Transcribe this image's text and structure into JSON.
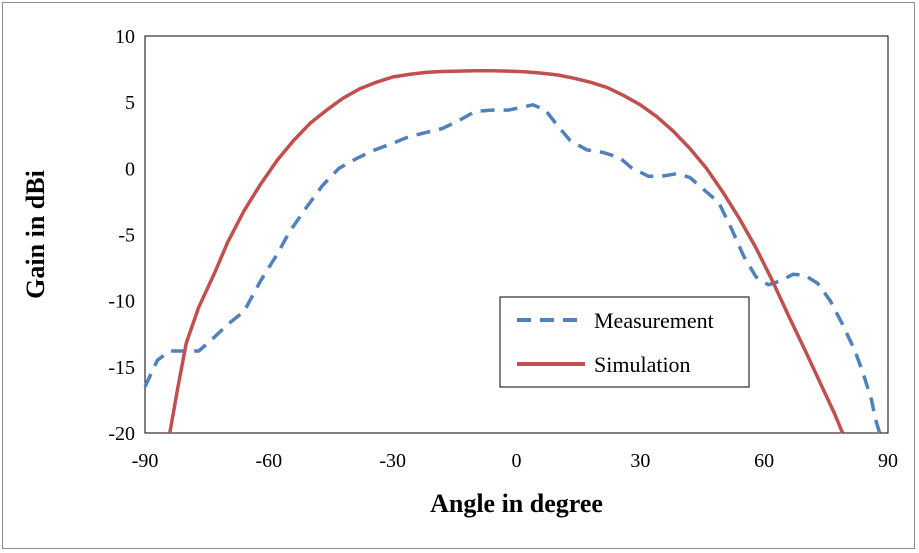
{
  "chart_data": {
    "type": "line",
    "title": "",
    "xlabel": "Angle in degree",
    "ylabel": "Gain in dBi",
    "xlim": [
      -90,
      90
    ],
    "ylim": [
      -20,
      10
    ],
    "xticks": [
      -90,
      -60,
      -30,
      0,
      30,
      60,
      90
    ],
    "yticks": [
      10,
      5,
      0,
      -5,
      -10,
      -15,
      -20
    ],
    "grid": false,
    "legend_position": "lower-right",
    "series": [
      {
        "name": "Measurement",
        "color": "#4F81BD",
        "style": "dashed",
        "points": [
          [
            -90,
            -16.5
          ],
          [
            -87,
            -14.5
          ],
          [
            -84,
            -13.8
          ],
          [
            -80,
            -13.8
          ],
          [
            -77,
            -13.8
          ],
          [
            -74,
            -13.0
          ],
          [
            -70,
            -11.8
          ],
          [
            -66,
            -10.8
          ],
          [
            -62,
            -8.5
          ],
          [
            -58,
            -6.5
          ],
          [
            -55,
            -4.8
          ],
          [
            -51,
            -3.0
          ],
          [
            -47,
            -1.3
          ],
          [
            -43,
            0.0
          ],
          [
            -39,
            0.7
          ],
          [
            -35,
            1.3
          ],
          [
            -30,
            1.9
          ],
          [
            -26,
            2.4
          ],
          [
            -22,
            2.7
          ],
          [
            -18,
            3.0
          ],
          [
            -14,
            3.6
          ],
          [
            -10,
            4.3
          ],
          [
            -6,
            4.4
          ],
          [
            -2,
            4.4
          ],
          [
            1,
            4.6
          ],
          [
            4,
            4.8
          ],
          [
            7,
            4.4
          ],
          [
            10,
            3.2
          ],
          [
            13,
            2.1
          ],
          [
            17,
            1.4
          ],
          [
            21,
            1.2
          ],
          [
            25,
            0.8
          ],
          [
            28,
            0.0
          ],
          [
            32,
            -0.6
          ],
          [
            35,
            -0.6
          ],
          [
            39,
            -0.4
          ],
          [
            42,
            -0.7
          ],
          [
            45,
            -1.5
          ],
          [
            49,
            -2.6
          ],
          [
            52,
            -4.5
          ],
          [
            55,
            -6.6
          ],
          [
            58,
            -8.2
          ],
          [
            61,
            -8.8
          ],
          [
            64,
            -8.5
          ],
          [
            67,
            -8.0
          ],
          [
            70,
            -8.1
          ],
          [
            73,
            -8.7
          ],
          [
            76,
            -10.0
          ],
          [
            79,
            -11.8
          ],
          [
            82,
            -13.8
          ],
          [
            84,
            -15.5
          ],
          [
            86,
            -17.5
          ],
          [
            87,
            -19.0
          ],
          [
            88,
            -20.0
          ]
        ]
      },
      {
        "name": "Simulation",
        "color": "#C0504D",
        "style": "solid",
        "points": [
          [
            -84,
            -20.0
          ],
          [
            -82,
            -16.5
          ],
          [
            -80,
            -13.2
          ],
          [
            -77,
            -10.5
          ],
          [
            -73,
            -7.8
          ],
          [
            -70,
            -5.6
          ],
          [
            -66,
            -3.2
          ],
          [
            -62,
            -1.2
          ],
          [
            -58,
            0.6
          ],
          [
            -54,
            2.1
          ],
          [
            -50,
            3.4
          ],
          [
            -46,
            4.4
          ],
          [
            -42,
            5.3
          ],
          [
            -38,
            6.0
          ],
          [
            -34,
            6.5
          ],
          [
            -30,
            6.9
          ],
          [
            -26,
            7.1
          ],
          [
            -22,
            7.25
          ],
          [
            -18,
            7.32
          ],
          [
            -14,
            7.35
          ],
          [
            -10,
            7.37
          ],
          [
            -6,
            7.38
          ],
          [
            -2,
            7.35
          ],
          [
            2,
            7.3
          ],
          [
            6,
            7.2
          ],
          [
            10,
            7.05
          ],
          [
            14,
            6.8
          ],
          [
            18,
            6.5
          ],
          [
            22,
            6.1
          ],
          [
            26,
            5.5
          ],
          [
            30,
            4.8
          ],
          [
            34,
            3.9
          ],
          [
            38,
            2.8
          ],
          [
            42,
            1.5
          ],
          [
            46,
            0.0
          ],
          [
            50,
            -1.8
          ],
          [
            54,
            -3.8
          ],
          [
            58,
            -6.0
          ],
          [
            62,
            -8.5
          ],
          [
            66,
            -11.2
          ],
          [
            70,
            -13.8
          ],
          [
            74,
            -16.5
          ],
          [
            77,
            -18.5
          ],
          [
            79,
            -20.0
          ]
        ]
      }
    ]
  }
}
